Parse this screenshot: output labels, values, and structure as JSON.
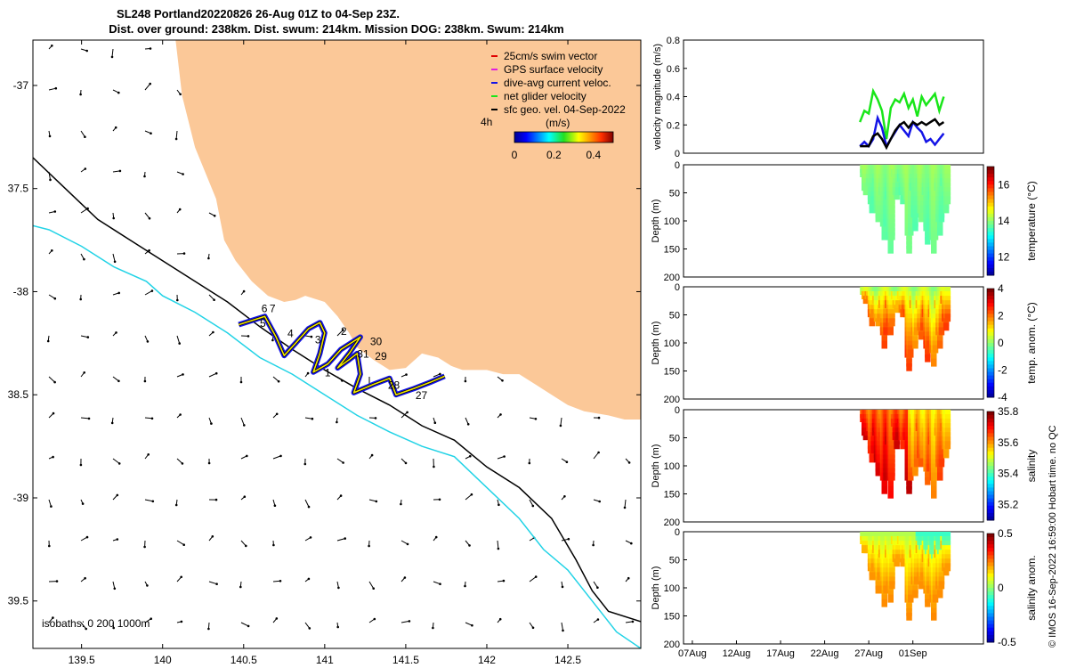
{
  "title_line1": "SL248 Portland20220826 26-Aug 01Z to 04-Sep 23Z.",
  "title_line2": "Dist. over ground: 238km. Dist. swum: 214km. Mission DOG: 238km. Swum: 214km",
  "copyright": "© IMOS 16-Sep-2022 16:59:00 Hobart time. no QC",
  "colors": {
    "land": "#fbc898",
    "isobath_200": "#000000",
    "isobath_1000": "#22d3e6",
    "net_velocity": "#19e619",
    "dive_current": "#1414e6",
    "surface_current": "#000000"
  },
  "chart_data": [
    {
      "type": "scatter",
      "name": "map",
      "xlim": [
        139.2,
        142.95
      ],
      "ylim": [
        -39.73,
        -36.78
      ],
      "xticks": [
        139.5,
        140,
        140.5,
        141,
        141.5,
        142,
        142.5
      ],
      "xtick_labels": [
        "139.5",
        "140",
        "140.5",
        "141",
        "141.5",
        "142",
        "142.5"
      ],
      "yticks": [
        -37,
        -37.5,
        -38,
        -38.5,
        -39,
        -39.5
      ],
      "ytick_labels": [
        "-37",
        "37.5",
        "-38",
        "38.5",
        "-39",
        "39.5"
      ],
      "legend": {
        "position": "top-right",
        "entries": [
          {
            "label": "25cm/s swim vector",
            "color": "#e00000"
          },
          {
            "label": "GPS surface velocity",
            "color": "#e020e0"
          },
          {
            "label": "dive-avg current veloc.",
            "color": "#1414e6"
          },
          {
            "label": "net glider velocity",
            "color": "#19e619"
          },
          {
            "label": "sfc geo. vel. 04-Sep-2022",
            "color": "#000000"
          }
        ],
        "interval_label": "4h"
      },
      "colorbar": {
        "label": "(m/s)",
        "ticks": [
          0,
          0.2,
          0.4
        ],
        "tick_labels": [
          "0",
          "0.2",
          "0.4"
        ],
        "range": [
          0,
          0.5
        ]
      },
      "isobath_label": "isobaths: 0   200  1000m",
      "coastline": [
        [
          140.08,
          -36.78
        ],
        [
          140.12,
          -37.05
        ],
        [
          140.2,
          -37.3
        ],
        [
          140.33,
          -37.55
        ],
        [
          140.38,
          -37.75
        ],
        [
          140.45,
          -37.85
        ],
        [
          140.55,
          -37.95
        ],
        [
          140.65,
          -38.02
        ],
        [
          140.75,
          -38.05
        ],
        [
          140.82,
          -38.04
        ],
        [
          140.88,
          -38.02
        ],
        [
          141.0,
          -38.05
        ],
        [
          141.08,
          -38.12
        ],
        [
          141.15,
          -38.2
        ],
        [
          141.2,
          -38.27
        ],
        [
          141.3,
          -38.33
        ],
        [
          141.4,
          -38.38
        ],
        [
          141.5,
          -38.37
        ],
        [
          141.6,
          -38.3
        ],
        [
          141.7,
          -38.32
        ],
        [
          141.78,
          -38.36
        ],
        [
          141.85,
          -38.38
        ],
        [
          142.0,
          -38.38
        ],
        [
          142.1,
          -38.4
        ],
        [
          142.2,
          -38.4
        ],
        [
          142.3,
          -38.45
        ],
        [
          142.4,
          -38.5
        ],
        [
          142.5,
          -38.55
        ],
        [
          142.6,
          -38.58
        ],
        [
          142.75,
          -38.6
        ],
        [
          142.85,
          -38.62
        ],
        [
          142.95,
          -38.62
        ]
      ],
      "isobath_200": [
        [
          139.2,
          -37.35
        ],
        [
          139.4,
          -37.5
        ],
        [
          139.6,
          -37.65
        ],
        [
          139.8,
          -37.75
        ],
        [
          140.0,
          -37.85
        ],
        [
          140.2,
          -37.95
        ],
        [
          140.4,
          -38.05
        ],
        [
          140.6,
          -38.17
        ],
        [
          140.8,
          -38.28
        ],
        [
          141.0,
          -38.38
        ],
        [
          141.2,
          -38.47
        ],
        [
          141.4,
          -38.55
        ],
        [
          141.6,
          -38.65
        ],
        [
          141.8,
          -38.72
        ],
        [
          142.0,
          -38.85
        ],
        [
          142.2,
          -38.95
        ],
        [
          142.4,
          -39.1
        ],
        [
          142.55,
          -39.3
        ],
        [
          142.65,
          -39.45
        ],
        [
          142.75,
          -39.55
        ],
        [
          142.95,
          -39.6
        ]
      ],
      "isobath_1000": [
        [
          139.2,
          -37.68
        ],
        [
          139.3,
          -37.7
        ],
        [
          139.5,
          -37.78
        ],
        [
          139.7,
          -37.88
        ],
        [
          139.9,
          -37.95
        ],
        [
          140.0,
          -38.02
        ],
        [
          140.2,
          -38.1
        ],
        [
          140.4,
          -38.2
        ],
        [
          140.6,
          -38.32
        ],
        [
          140.8,
          -38.4
        ],
        [
          141.0,
          -38.5
        ],
        [
          141.2,
          -38.6
        ],
        [
          141.4,
          -38.68
        ],
        [
          141.6,
          -38.75
        ],
        [
          141.8,
          -38.8
        ],
        [
          142.0,
          -38.95
        ],
        [
          142.2,
          -39.1
        ],
        [
          142.35,
          -39.25
        ],
        [
          142.5,
          -39.35
        ],
        [
          142.6,
          -39.45
        ],
        [
          142.7,
          -39.55
        ],
        [
          142.8,
          -39.65
        ],
        [
          142.95,
          -39.73
        ]
      ],
      "glider_track": [
        [
          140.47,
          -38.16
        ],
        [
          140.55,
          -38.14
        ],
        [
          140.63,
          -38.12
        ],
        [
          140.7,
          -38.22
        ],
        [
          140.75,
          -38.31
        ],
        [
          140.82,
          -38.25
        ],
        [
          140.9,
          -38.18
        ],
        [
          140.97,
          -38.15
        ],
        [
          141.0,
          -38.2
        ],
        [
          140.97,
          -38.3
        ],
        [
          140.93,
          -38.39
        ],
        [
          141.02,
          -38.35
        ],
        [
          141.1,
          -38.28
        ],
        [
          141.22,
          -38.22
        ],
        [
          141.15,
          -38.3
        ],
        [
          141.08,
          -38.37
        ],
        [
          141.15,
          -38.33
        ],
        [
          141.2,
          -38.3
        ],
        [
          141.22,
          -38.4
        ],
        [
          141.18,
          -38.49
        ],
        [
          141.3,
          -38.45
        ],
        [
          141.4,
          -38.42
        ],
        [
          141.44,
          -38.5
        ],
        [
          141.55,
          -38.47
        ],
        [
          141.65,
          -38.44
        ],
        [
          141.74,
          -38.41
        ]
      ],
      "track_labels": [
        {
          "text": "6",
          "lon": 140.61,
          "lat": -38.1
        },
        {
          "text": "7",
          "lon": 140.66,
          "lat": -38.1
        },
        {
          "text": "5",
          "lon": 140.6,
          "lat": -38.17
        },
        {
          "text": "4",
          "lon": 140.77,
          "lat": -38.22
        },
        {
          "text": "3",
          "lon": 140.94,
          "lat": -38.25
        },
        {
          "text": "2",
          "lon": 141.1,
          "lat": -38.21
        },
        {
          "text": "30",
          "lon": 141.28,
          "lat": -38.26
        },
        {
          "text": "31",
          "lon": 141.2,
          "lat": -38.32
        },
        {
          "text": "29",
          "lon": 141.31,
          "lat": -38.33
        },
        {
          "text": "1",
          "lon": 141.0,
          "lat": -38.41
        },
        {
          "text": "28",
          "lon": 141.39,
          "lat": -38.47
        },
        {
          "text": "27",
          "lon": 141.56,
          "lat": -38.52
        }
      ]
    },
    {
      "type": "line",
      "name": "velocity",
      "ylabel": "velocity magnitude (m/s)",
      "ylim": [
        0,
        0.8
      ],
      "yticks": [
        0,
        0.2,
        0.4,
        0.6,
        0.8
      ],
      "ytick_labels": [
        "0",
        "0.2",
        "0.4",
        "0.6",
        "0.8"
      ],
      "x_range_days": [
        6,
        40
      ],
      "series": [
        {
          "color": "#19e619",
          "x": [
            26.0,
            26.5,
            27.0,
            27.5,
            28.0,
            28.5,
            29.0,
            29.5,
            30.0,
            30.5,
            31.0,
            31.5,
            32.0,
            32.5,
            33.0,
            33.5,
            34.0,
            34.5,
            35.0,
            35.5
          ],
          "values": [
            0.22,
            0.3,
            0.28,
            0.44,
            0.38,
            0.3,
            0.1,
            0.32,
            0.38,
            0.36,
            0.42,
            0.32,
            0.38,
            0.26,
            0.4,
            0.34,
            0.38,
            0.42,
            0.3,
            0.4
          ]
        },
        {
          "color": "#1414e6",
          "x": [
            26.0,
            26.5,
            27.0,
            27.5,
            28.0,
            28.5,
            29.0,
            29.5,
            30.0,
            30.5,
            31.0,
            31.5,
            32.0,
            32.5,
            33.0,
            33.5,
            34.0,
            34.5,
            35.0,
            35.5
          ],
          "values": [
            0.05,
            0.08,
            0.05,
            0.1,
            0.25,
            0.18,
            0.05,
            0.1,
            0.15,
            0.2,
            0.16,
            0.12,
            0.22,
            0.18,
            0.15,
            0.08,
            0.1,
            0.06,
            0.1,
            0.14
          ]
        },
        {
          "color": "#000000",
          "x": [
            26.0,
            26.5,
            27.0,
            27.5,
            28.0,
            28.5,
            29.0,
            29.5,
            30.0,
            30.5,
            31.0,
            31.5,
            32.0,
            32.5,
            33.0,
            33.5,
            34.0,
            34.5,
            35.0,
            35.5
          ],
          "values": [
            0.05,
            0.05,
            0.05,
            0.12,
            0.14,
            0.1,
            0.04,
            0.1,
            0.16,
            0.2,
            0.22,
            0.18,
            0.22,
            0.2,
            0.22,
            0.2,
            0.22,
            0.24,
            0.2,
            0.22
          ]
        }
      ]
    },
    {
      "type": "heatmap",
      "name": "temperature",
      "ylabel": "Depth (m)",
      "cblabel": "temperature (°C)",
      "clim": [
        11,
        17
      ],
      "cticks": [
        12,
        14,
        16
      ],
      "ctick_labels": [
        "12",
        "14",
        "16"
      ],
      "dive_max_depths": [
        45,
        80,
        95,
        130,
        155,
        55,
        60,
        150,
        110,
        95,
        135,
        155,
        120,
        80
      ],
      "yticks": [
        0,
        50,
        100,
        150,
        200
      ],
      "ytick_labels": [
        "0",
        "50",
        "100",
        "150",
        "200"
      ]
    },
    {
      "type": "heatmap",
      "name": "temperature-anomaly",
      "ylabel": "Depth (m)",
      "cblabel": "temp. anom. (°C)",
      "clim": [
        -4,
        4
      ],
      "cticks": [
        -4,
        -2,
        0,
        2,
        4
      ],
      "ctick_labels": [
        "-4",
        "-2",
        "0",
        "2",
        "4"
      ],
      "dive_max_depths": [
        20,
        60,
        65,
        100,
        80,
        40,
        45,
        145,
        100,
        90,
        130,
        135,
        100,
        70
      ],
      "yticks": [
        0,
        50,
        100,
        150,
        200
      ],
      "ytick_labels": [
        "0",
        "50",
        "100",
        "150",
        "200"
      ]
    },
    {
      "type": "heatmap",
      "name": "salinity",
      "ylabel": "Depth (m)",
      "cblabel": "salinity",
      "clim": [
        35.1,
        35.8
      ],
      "cticks": [
        35.2,
        35.4,
        35.6,
        35.8
      ],
      "ctick_labels": [
        "35.2",
        "35.4",
        "35.6",
        "35.8"
      ],
      "dive_max_depths": [
        45,
        85,
        110,
        145,
        150,
        60,
        60,
        145,
        115,
        95,
        130,
        150,
        120,
        80
      ],
      "yticks": [
        0,
        50,
        100,
        150,
        200
      ],
      "ytick_labels": [
        "0",
        "50",
        "100",
        "150",
        "200"
      ]
    },
    {
      "type": "heatmap",
      "name": "salinity-anomaly",
      "ylabel": "Depth (m)",
      "cblabel": "salinity anom.",
      "clim": [
        -0.5,
        0.5
      ],
      "cticks": [
        -0.5,
        0,
        0.5
      ],
      "ctick_labels": [
        "-0.5",
        "0",
        "0.5"
      ],
      "dive_max_depths": [
        35,
        80,
        100,
        125,
        120,
        55,
        55,
        150,
        110,
        95,
        130,
        150,
        115,
        75
      ],
      "yticks": [
        0,
        50,
        100,
        150,
        200
      ],
      "ytick_labels": [
        "0",
        "50",
        "100",
        "150",
        "200"
      ],
      "xticks": [
        7,
        12,
        17,
        22,
        27,
        32
      ],
      "xtick_labels": [
        "07Aug",
        "12Aug",
        "17Aug",
        "22Aug",
        "27Aug",
        "01Sep"
      ]
    }
  ]
}
